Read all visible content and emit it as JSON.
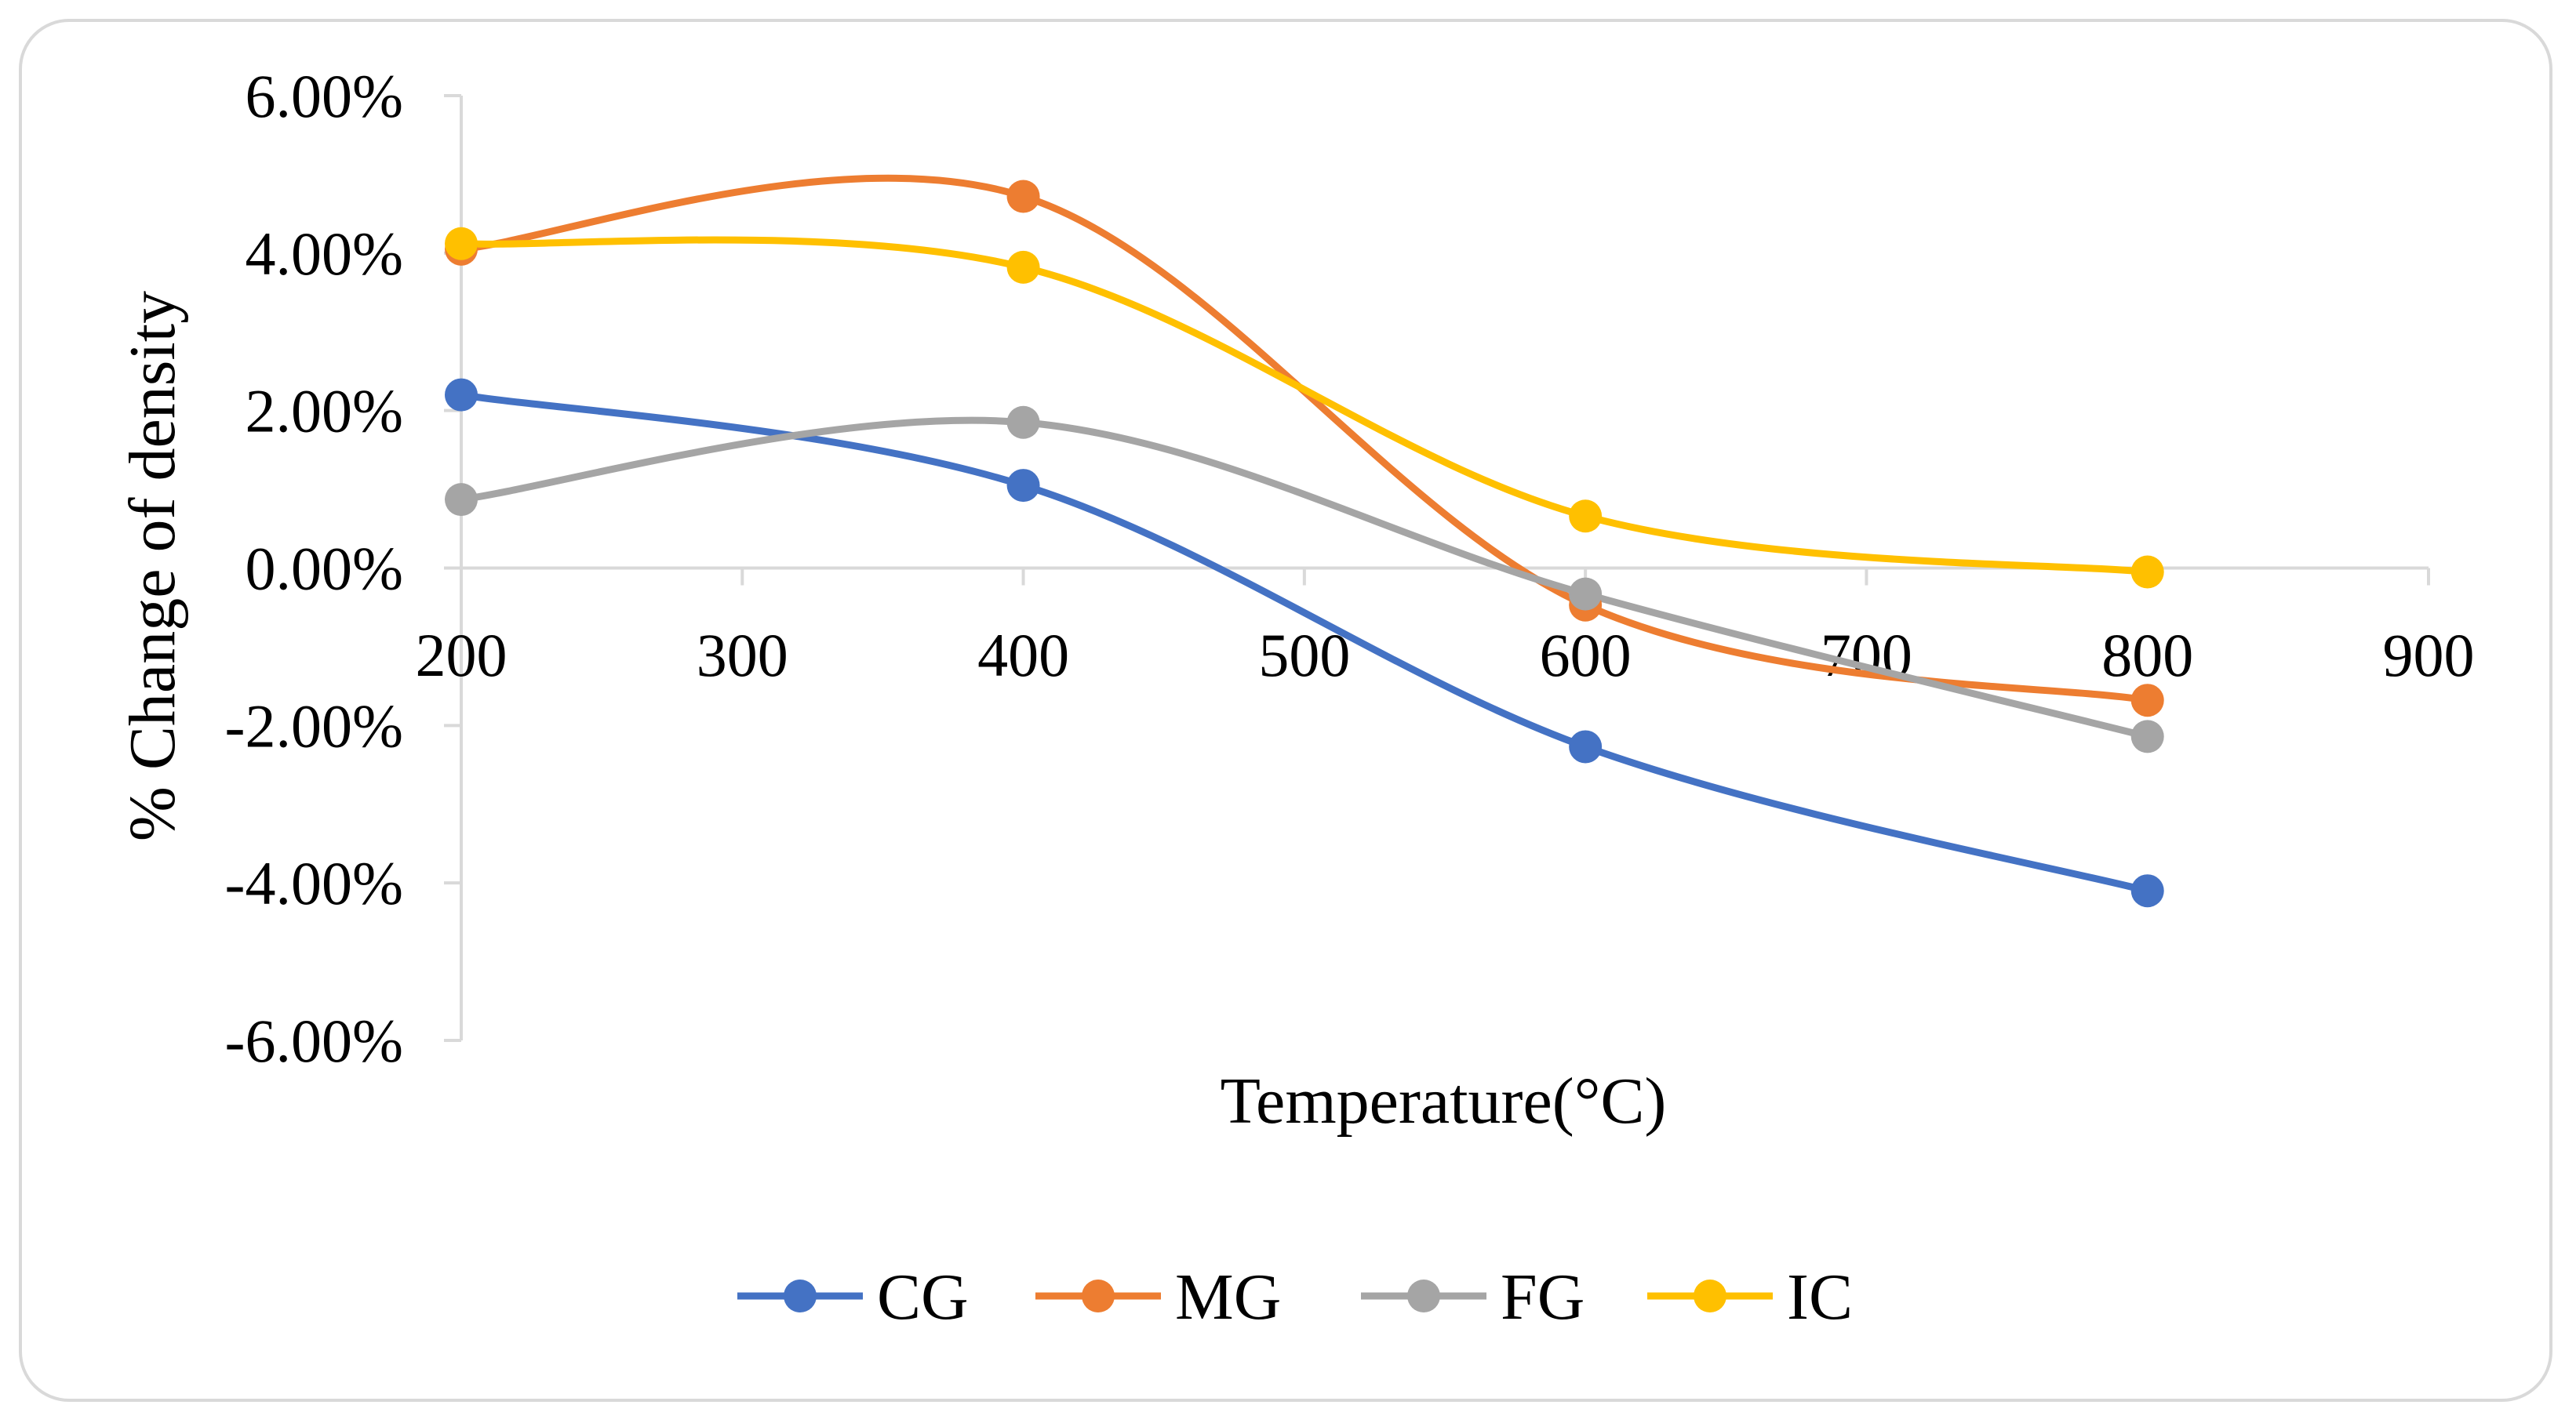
{
  "chart_data": {
    "type": "line",
    "smoothed": true,
    "title": "",
    "xlabel": "Temperature(°C)",
    "ylabel": "% Change of density",
    "x": [
      200,
      400,
      600,
      800
    ],
    "xlim": [
      200,
      900
    ],
    "xticks": [
      200,
      300,
      400,
      500,
      600,
      700,
      800,
      900
    ],
    "xtick_labels": [
      "200",
      "300",
      "400",
      "500",
      "600",
      "700",
      "800",
      "900"
    ],
    "ylim": [
      -6,
      6
    ],
    "yticks": [
      6,
      4,
      2,
      0,
      -2,
      -4,
      -6
    ],
    "ytick_labels": [
      "6.00%",
      "4.00%",
      "2.00%",
      "0.00%",
      "-2.00%",
      "-4.00%",
      "-6.00%"
    ],
    "grid": false,
    "legend_position": "bottom",
    "series": [
      {
        "name": "CG",
        "color": "#4472C4",
        "values": [
          2.2,
          1.05,
          -2.27,
          -4.1
        ]
      },
      {
        "name": "MG",
        "color": "#ED7D31",
        "values": [
          4.05,
          4.72,
          -0.47,
          -1.68
        ]
      },
      {
        "name": "FG",
        "color": "#A5A5A5",
        "values": [
          0.87,
          1.85,
          -0.33,
          -2.14
        ]
      },
      {
        "name": "IC",
        "color": "#FFC000",
        "values": [
          4.12,
          3.82,
          0.66,
          -0.05
        ]
      }
    ]
  }
}
